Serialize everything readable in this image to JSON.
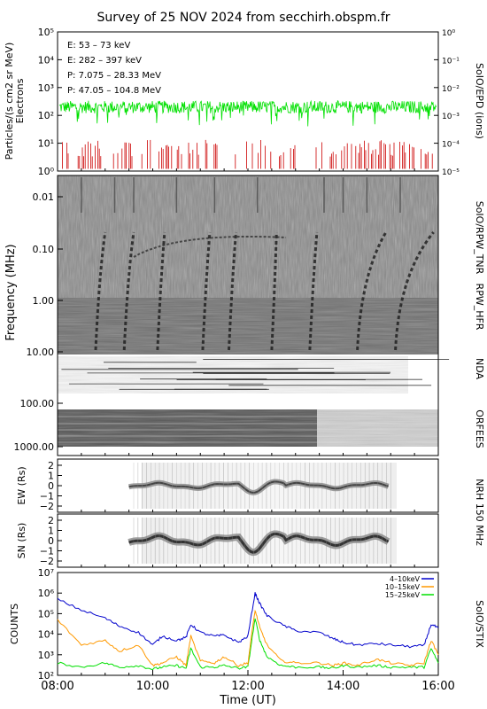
{
  "title": "Survey of 25 NOV 2024 from secchirh.obspm.fr",
  "xlabel": "Time (UT)",
  "x_ticks": [
    "08:00",
    "10:00",
    "12:00",
    "14:00",
    "16:00"
  ],
  "colors": {
    "green": "#00e000",
    "red": "#cc0000",
    "black": "#000000",
    "blue": "#0000cc",
    "orange": "#ff9900"
  },
  "panels": {
    "epd": {
      "ylabel_left_1": "Particles/(s cm2 sr MeV)",
      "ylabel_left_2": "Electrons",
      "ylabel_right": "SoIO/EPD (ions)",
      "left_ticks": [
        "10⁰",
        "10¹",
        "10²",
        "10³",
        "10⁴",
        "10⁵"
      ],
      "right_ticks": [
        "10⁻⁵",
        "10⁻⁴",
        "10⁻³",
        "10⁻²",
        "10⁻¹",
        "10⁰"
      ],
      "legend": [
        {
          "text": "E: 53 – 73 keV",
          "color": "#00e000"
        },
        {
          "text": "E: 282 – 397 keV",
          "color": "#cc0000"
        },
        {
          "text": "P: 7.075 – 28.33 MeV",
          "color": "#000000"
        },
        {
          "text": "P: 47.05 – 104.8 MeV",
          "color": "#0000cc"
        }
      ]
    },
    "spectro": {
      "ylabel": "Frequency (MHz)",
      "ticks": [
        "0.01",
        "0.10",
        "1.00",
        "10.00",
        "100.00",
        "1000.00"
      ],
      "right_labels": [
        "SoIO/RPW_TNR",
        "RPW_HFR",
        "NDA",
        "ORFEES"
      ]
    },
    "nrh": {
      "ew_label": "EW (Rs)",
      "sn_label": "SN (Rs)",
      "ticks": [
        "2",
        "1",
        "0",
        "−1",
        "−2"
      ],
      "right_label": "NRH 150 MHz"
    },
    "stix": {
      "ylabel": "COUNTS",
      "right_label": "SoIO/STIX",
      "ticks": [
        "10²",
        "10³",
        "10⁴",
        "10⁵",
        "10⁶",
        "10⁷"
      ],
      "legend": [
        {
          "text": "4–10keV",
          "color": "#0000cc"
        },
        {
          "text": "10–15keV",
          "color": "#ff9900"
        },
        {
          "text": "15–25keV",
          "color": "#00e000"
        }
      ]
    }
  },
  "chart_data": {
    "type": "line",
    "title": "Survey of 25 NOV 2024 from secchirh.obspm.fr",
    "xlabel": "Time (UT)",
    "x_range_hours": [
      8,
      16
    ],
    "stix": {
      "ylabel": "COUNTS",
      "log_scale": true,
      "ylim": [
        100,
        10000000
      ],
      "x": [
        8.0,
        8.5,
        9.0,
        9.3,
        9.7,
        10.0,
        10.2,
        10.5,
        10.7,
        10.8,
        11.0,
        11.3,
        11.5,
        11.8,
        12.0,
        12.15,
        12.25,
        12.4,
        12.7,
        13.0,
        13.5,
        13.8,
        14.0,
        14.3,
        14.7,
        15.0,
        15.4,
        15.7,
        15.85,
        16.0
      ],
      "series": [
        {
          "name": "4–10keV",
          "color": "#0000cc",
          "values": [
            500000,
            150000,
            60000,
            25000,
            12000,
            3000,
            8000,
            5000,
            7000,
            30000,
            12000,
            8000,
            9000,
            4000,
            8000,
            1000000,
            300000,
            80000,
            30000,
            15000,
            12000,
            6000,
            4000,
            3000,
            3500,
            3000,
            2500,
            2800,
            30000,
            20000
          ]
        },
        {
          "name": "10–15keV",
          "color": "#ff9900",
          "values": [
            50000,
            3000,
            5000,
            1500,
            3000,
            300,
            400,
            800,
            300,
            8000,
            500,
            400,
            800,
            300,
            400,
            150000,
            20000,
            3000,
            500,
            400,
            400,
            300,
            400,
            300,
            600,
            400,
            300,
            400,
            5000,
            1000
          ]
        },
        {
          "name": "15–25keV",
          "color": "#00e000",
          "values": [
            400,
            250,
            400,
            250,
            300,
            200,
            250,
            300,
            220,
            2000,
            250,
            250,
            300,
            220,
            250,
            60000,
            5000,
            800,
            300,
            250,
            250,
            220,
            300,
            250,
            300,
            250,
            250,
            250,
            2000,
            400
          ]
        }
      ]
    },
    "epd": {
      "log_scale": true,
      "ylim": [
        1,
        100000
      ],
      "series": [
        {
          "name": "E: 53 – 73 keV",
          "color": "#00e000",
          "level": 200
        },
        {
          "name": "E: 282 – 397 keV",
          "color": "#cc0000",
          "level": 5
        }
      ]
    }
  }
}
